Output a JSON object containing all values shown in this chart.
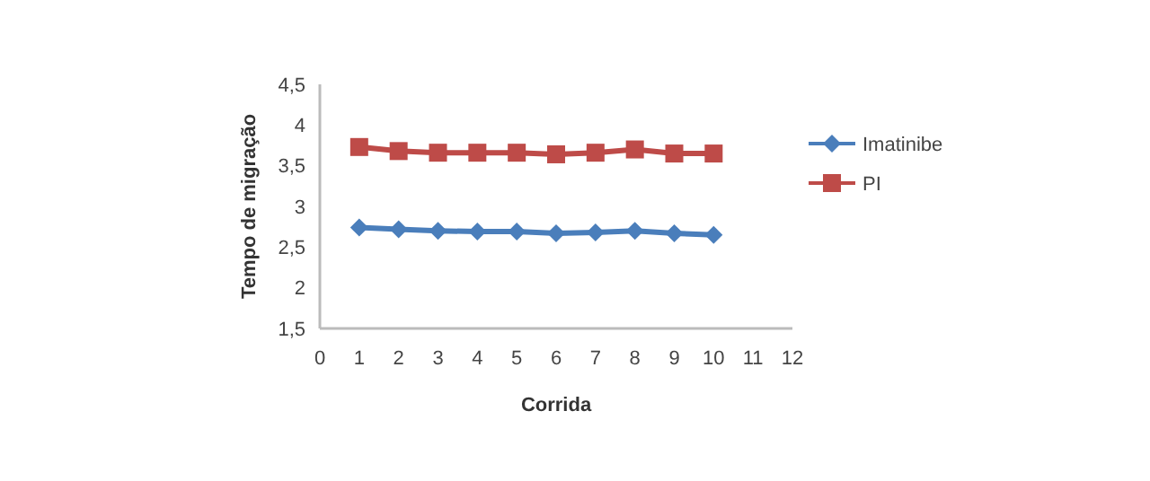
{
  "chart_data": {
    "type": "line",
    "xlabel": "Corrida",
    "ylabel": "Tempo de migração",
    "x": [
      1,
      2,
      3,
      4,
      5,
      6,
      7,
      8,
      9,
      10
    ],
    "series": [
      {
        "name": "Imatinibe",
        "color": "#4a7ebb",
        "marker": "diamond",
        "values": [
          2.74,
          2.72,
          2.7,
          2.69,
          2.69,
          2.67,
          2.68,
          2.7,
          2.67,
          2.65
        ]
      },
      {
        "name": "PI",
        "color": "#be4b48",
        "marker": "square",
        "values": [
          3.73,
          3.68,
          3.66,
          3.66,
          3.66,
          3.64,
          3.66,
          3.7,
          3.65,
          3.65
        ]
      }
    ],
    "xlim": [
      0,
      12
    ],
    "xticks": [
      0,
      1,
      2,
      3,
      4,
      5,
      6,
      7,
      8,
      9,
      10,
      11,
      12
    ],
    "ylim": [
      1.5,
      4.5
    ],
    "yticks": [
      {
        "value": 1.5,
        "label": "1,5"
      },
      2,
      {
        "value": 2.5,
        "label": "2,5"
      },
      3,
      {
        "value": 3.5,
        "label": "3,5"
      },
      4,
      {
        "value": 4.5,
        "label": "4,5"
      }
    ],
    "grid": false,
    "legend": "right"
  }
}
